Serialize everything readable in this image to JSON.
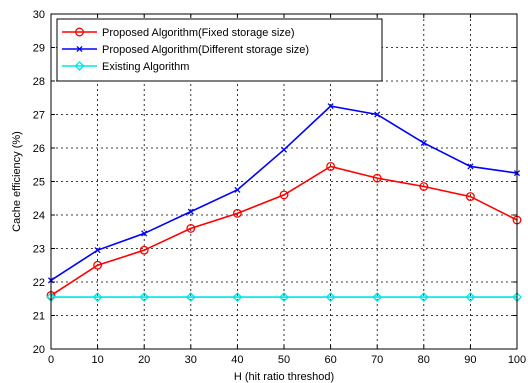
{
  "chart_data": {
    "type": "line",
    "title": "",
    "xlabel": "H (hit ratio threshod)",
    "ylabel": "Cache efficiency (%)",
    "xlim": [
      0,
      100
    ],
    "ylim": [
      20,
      30
    ],
    "xticks": [
      0,
      10,
      20,
      30,
      40,
      50,
      60,
      70,
      80,
      90,
      100
    ],
    "yticks": [
      20,
      21,
      22,
      23,
      24,
      25,
      26,
      27,
      28,
      29,
      30
    ],
    "grid": true,
    "legend_position": "top-left",
    "x": [
      0,
      10,
      20,
      30,
      40,
      50,
      60,
      70,
      80,
      90,
      100
    ],
    "series": [
      {
        "name": "Proposed Algorithm(Fixed storage size)",
        "color": "#ff0000",
        "marker": "circle",
        "values": [
          21.6,
          22.5,
          22.95,
          23.6,
          24.05,
          24.6,
          25.45,
          25.1,
          24.85,
          24.55,
          23.85
        ]
      },
      {
        "name": "Proposed Algorithm(Different storage size)",
        "color": "#0000ff",
        "marker": "x",
        "values": [
          22.05,
          22.95,
          23.45,
          24.1,
          24.75,
          25.95,
          27.25,
          27.0,
          26.15,
          25.45,
          25.25
        ]
      },
      {
        "name": "Existing Algorithm",
        "color": "#00e5e5",
        "marker": "diamond",
        "values": [
          21.55,
          21.55,
          21.55,
          21.55,
          21.55,
          21.55,
          21.55,
          21.55,
          21.55,
          21.55,
          21.55
        ]
      }
    ]
  }
}
